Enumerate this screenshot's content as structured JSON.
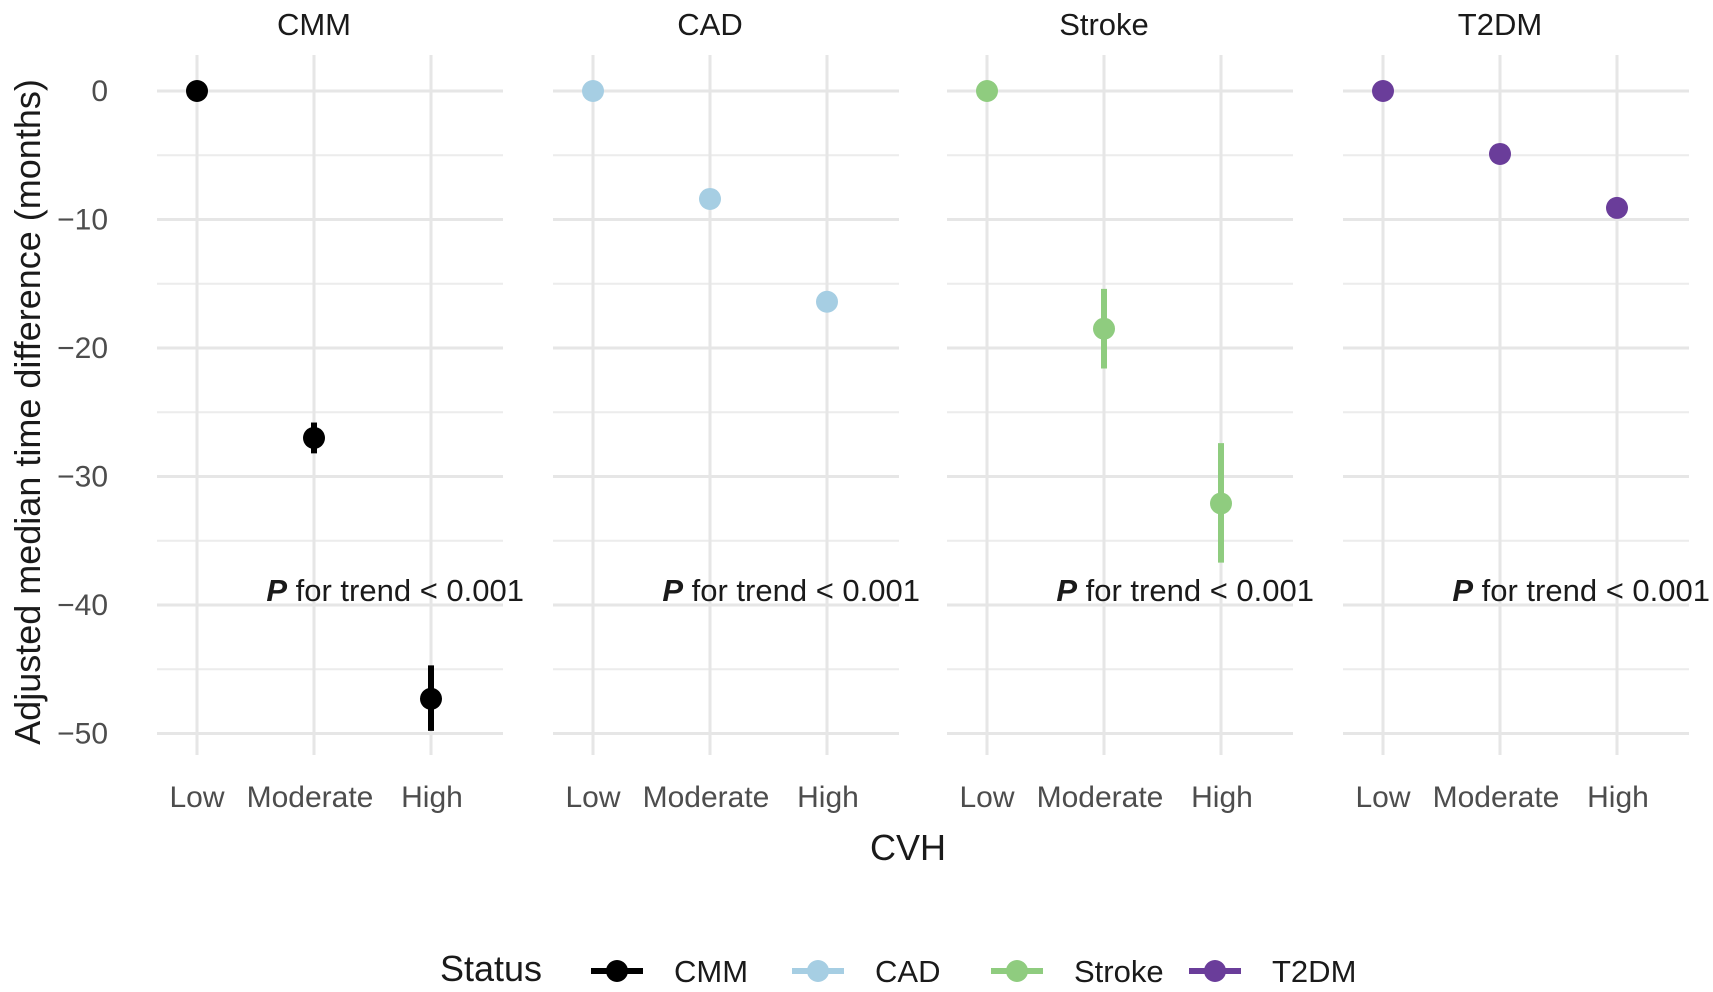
{
  "chart_data": {
    "type": "scatter",
    "subtype": "faceted point-range (point estimate with error bar)",
    "xlabel": "CVH",
    "ylabel": "Adjusted median time difference (months)",
    "ylim": [
      -53,
      3
    ],
    "y_ticks": [
      0,
      -10,
      -20,
      -30,
      -40,
      -50
    ],
    "y_tick_labels": [
      "0",
      "−10",
      "−20",
      "−30",
      "−40",
      "−50"
    ],
    "categories": [
      "Low",
      "Moderate",
      "High"
    ],
    "grid": true,
    "legend": {
      "title": "Status",
      "position": "bottom",
      "entries": [
        {
          "label": "CMM",
          "color": "#000000"
        },
        {
          "label": "CAD",
          "color": "#a6cee3"
        },
        {
          "label": "Stroke",
          "color": "#8fcc7f"
        },
        {
          "label": "T2DM",
          "color": "#6a3d9a"
        }
      ]
    },
    "facets": [
      {
        "name": "CMM",
        "color": "#000000",
        "values": [
          0,
          -27.0,
          -47.3
        ],
        "ci_low": [
          0,
          -28.2,
          -49.8
        ],
        "ci_high": [
          0,
          -25.8,
          -44.7
        ],
        "annotation": {
          "p": "P",
          "text": " for trend < 0.001"
        }
      },
      {
        "name": "CAD",
        "color": "#a6cee3",
        "values": [
          0,
          -8.4,
          -16.4
        ],
        "ci_low": [
          0,
          -8.4,
          -16.4
        ],
        "ci_high": [
          0,
          -8.4,
          -16.4
        ],
        "annotation": {
          "p": "P",
          "text": " for trend < 0.001"
        }
      },
      {
        "name": "Stroke",
        "color": "#8fcc7f",
        "values": [
          0,
          -18.5,
          -32.1
        ],
        "ci_low": [
          0,
          -21.6,
          -36.7
        ],
        "ci_high": [
          0,
          -15.4,
          -27.4
        ],
        "annotation": {
          "p": "P",
          "text": " for trend < 0.001"
        }
      },
      {
        "name": "T2DM",
        "color": "#6a3d9a",
        "values": [
          0,
          -4.9,
          -9.1
        ],
        "ci_low": [
          0,
          -4.9,
          -9.1
        ],
        "ci_high": [
          0,
          -4.9,
          -9.1
        ],
        "annotation": {
          "p": "P",
          "text": " for trend < 0.001"
        }
      }
    ]
  }
}
